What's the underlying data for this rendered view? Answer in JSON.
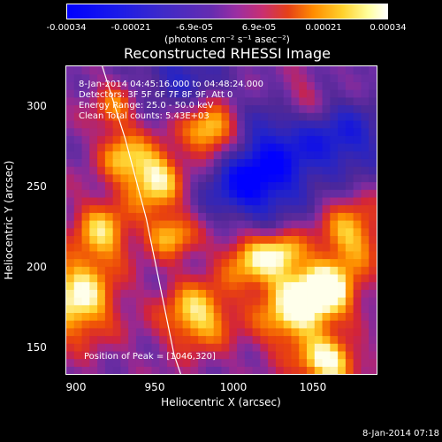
{
  "colorbar": {
    "ticks": [
      "-0.00034",
      "-0.00021",
      "-6.9e-05",
      "6.9e-05",
      "0.00021",
      "0.00034"
    ],
    "tick_values": [
      -0.00034,
      -0.00021,
      -6.9e-05,
      6.9e-05,
      0.00021,
      0.00034
    ],
    "unit_label": "(photons cm⁻² s⁻¹ asec⁻²)"
  },
  "chart_data": {
    "type": "heatmap",
    "title": "Reconstructed RHESSI Image",
    "xlabel": "Heliocentric X (arcsec)",
    "ylabel": "Heliocentric Y (arcsec)",
    "xlim": [
      896,
      1086
    ],
    "ylim": [
      133,
      325
    ],
    "x_ticks": [
      "900",
      "950",
      "1000",
      "1050"
    ],
    "x_tick_values": [
      900,
      950,
      1000,
      1050
    ],
    "y_ticks": [
      "150",
      "200",
      "250",
      "300"
    ],
    "y_tick_values": [
      150,
      200,
      250,
      300
    ],
    "clim": [
      -0.00034,
      0.00034
    ],
    "blobs": [
      {
        "x": 903,
        "y": 180,
        "sx": 16,
        "sy": 18,
        "amp": 0.00034
      },
      {
        "x": 918,
        "y": 222,
        "sx": 12,
        "sy": 14,
        "amp": 0.00026
      },
      {
        "x": 930,
        "y": 270,
        "sx": 10,
        "sy": 12,
        "amp": 0.00022
      },
      {
        "x": 950,
        "y": 255,
        "sx": 12,
        "sy": 14,
        "amp": 0.00033
      },
      {
        "x": 960,
        "y": 220,
        "sx": 11,
        "sy": 10,
        "amp": 0.00025
      },
      {
        "x": 985,
        "y": 285,
        "sx": 12,
        "sy": 12,
        "amp": 0.00034
      },
      {
        "x": 976,
        "y": 170,
        "sx": 15,
        "sy": 15,
        "amp": 0.0003
      },
      {
        "x": 1010,
        "y": 205,
        "sx": 13,
        "sy": 12,
        "amp": 0.00027
      },
      {
        "x": 1035,
        "y": 173,
        "sx": 16,
        "sy": 18,
        "amp": 0.00032
      },
      {
        "x": 1055,
        "y": 185,
        "sx": 13,
        "sy": 12,
        "amp": 0.00034
      },
      {
        "x": 1057,
        "y": 140,
        "sx": 12,
        "sy": 10,
        "amp": 0.00034
      },
      {
        "x": 1070,
        "y": 220,
        "sx": 14,
        "sy": 16,
        "amp": 0.00026
      },
      {
        "x": 1030,
        "y": 210,
        "sx": 9,
        "sy": 9,
        "amp": 0.0002
      },
      {
        "x": 925,
        "y": 300,
        "sx": 9,
        "sy": 10,
        "amp": 0.00018
      },
      {
        "x": 1040,
        "y": 305,
        "sx": 10,
        "sy": 10,
        "amp": 0.00014
      },
      {
        "x": 1005,
        "y": 250,
        "sx": 18,
        "sy": 16,
        "amp": -0.00022
      },
      {
        "x": 1025,
        "y": 270,
        "sx": 22,
        "sy": 24,
        "amp": -0.00024
      },
      {
        "x": 1070,
        "y": 280,
        "sx": 18,
        "sy": 18,
        "amp": -0.0002
      },
      {
        "x": 965,
        "y": 320,
        "sx": 18,
        "sy": 14,
        "amp": -0.00018
      }
    ],
    "limb_curve": {
      "x": [
        918,
        932,
        945,
        955,
        962,
        966
      ],
      "y": [
        325,
        280,
        230,
        180,
        145,
        133
      ]
    },
    "annotations": {
      "time_range": "8-Jan-2014 04:45:16.000 to 04:48:24.000",
      "detectors": "Detectors: 3F 5F 6F 7F 8F 9F, Att 0",
      "energy": "Energy Range: 25.0 - 50.0 keV",
      "clean": "Clean     Total counts: 5.43E+03",
      "peak": "Position of Peak = [1046,320]"
    }
  },
  "footer": {
    "timestamp": "8-Jan-2014 07:18"
  }
}
